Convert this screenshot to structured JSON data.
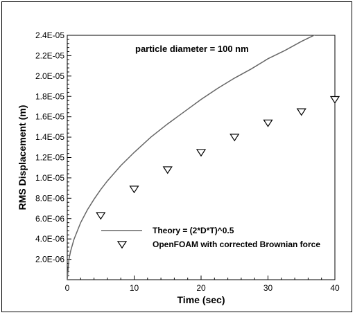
{
  "chart_data": {
    "type": "line",
    "annotation": "particle diameter = 100 nm",
    "xlabel": "Time (sec)",
    "ylabel": "RMS Displacement (m)",
    "xlim": [
      0,
      40
    ],
    "ylim": [
      0,
      2.4e-05
    ],
    "x_ticks": [
      0,
      10,
      20,
      30,
      40
    ],
    "x_tick_labels": [
      "0",
      "10",
      "20",
      "30",
      "40"
    ],
    "y_ticks": [
      2e-06,
      4e-06,
      6e-06,
      8e-06,
      1e-05,
      1.2e-05,
      1.4e-05,
      1.6e-05,
      1.8e-05,
      2e-05,
      2.2e-05,
      2.4e-05
    ],
    "y_tick_labels": [
      "2.0E-06",
      "4.0E-06",
      "6.0E-06",
      "8.0E-06",
      "1.0E-05",
      "1.2E-05",
      "1.4E-05",
      "1.6E-05",
      "1.8E-05",
      "2.0E-05",
      "2.2E-05",
      "2.4E-05"
    ],
    "grid": false,
    "legend_position": "bottom-right",
    "series": [
      {
        "name": "Theory  = (2*D*T)^0.5",
        "style": "line",
        "color": "#666666",
        "x": [
          0,
          0.25,
          0.5,
          1,
          2,
          3,
          4,
          5,
          6,
          8,
          10,
          12.5,
          15,
          17.5,
          20,
          22.5,
          25,
          27.5,
          30,
          32.5,
          35,
          37.5,
          40
        ],
        "y": [
          0,
          2e-06,
          2.8e-06,
          3.95e-06,
          5.6e-06,
          6.85e-06,
          7.9e-06,
          8.85e-06,
          9.7e-06,
          1.12e-05,
          1.25e-05,
          1.4e-05,
          1.53e-05,
          1.65e-05,
          1.77e-05,
          1.88e-05,
          1.98e-05,
          2.07e-05,
          2.17e-05,
          2.25e-05,
          2.34e-05,
          2.42e-05,
          2.5e-05
        ]
      },
      {
        "name": "OpenFOAM with corrected Brownian force",
        "style": "marker",
        "marker": "down-triangle",
        "color": "#000000",
        "x": [
          5,
          10,
          15,
          20,
          25,
          30,
          35,
          40
        ],
        "y": [
          6.3e-06,
          8.9e-06,
          1.08e-05,
          1.25e-05,
          1.4e-05,
          1.54e-05,
          1.65e-05,
          1.77e-05
        ]
      }
    ]
  }
}
